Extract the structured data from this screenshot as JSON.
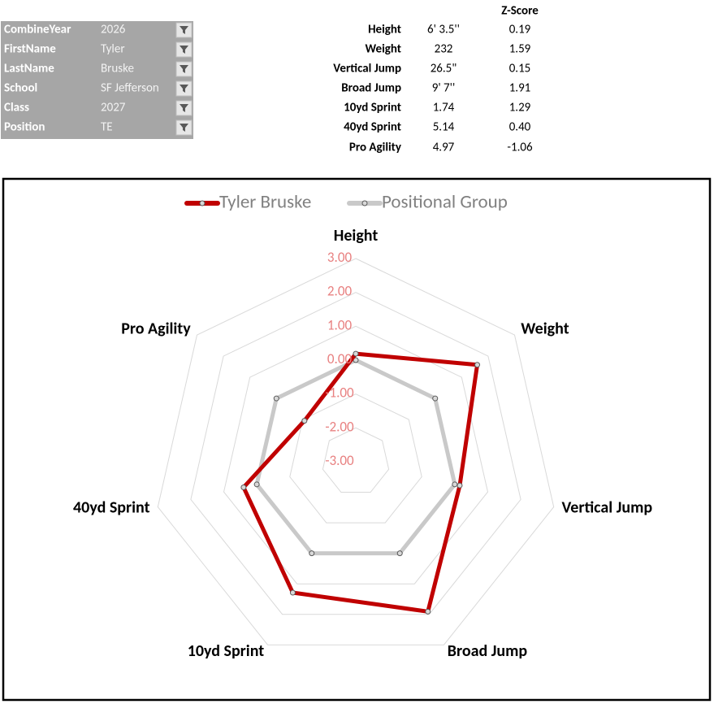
{
  "filters": [
    {
      "label": "CombineYear",
      "value": "2026"
    },
    {
      "label": "FirstName",
      "value": "Tyler"
    },
    {
      "label": "LastName",
      "value": "Bruske"
    },
    {
      "label": "School",
      "value": "SF Jefferson"
    },
    {
      "label": "Class",
      "value": "2027"
    },
    {
      "label": "Position",
      "value": "TE"
    }
  ],
  "stats": {
    "zscore_header": "Z-Score",
    "rows": [
      {
        "label": "Height",
        "value": "6' 3.5''",
        "zscore": "0.19"
      },
      {
        "label": "Weight",
        "value": "232",
        "zscore": "1.59"
      },
      {
        "label": "Vertical Jump",
        "value": "26.5\"",
        "zscore": "0.15"
      },
      {
        "label": "Broad Jump",
        "value": "9' 7''",
        "zscore": "1.91"
      },
      {
        "label": "10yd Sprint",
        "value": "1.74",
        "zscore": "1.29"
      },
      {
        "label": "40yd Sprint",
        "value": "5.14",
        "zscore": "0.40"
      },
      {
        "label": "Pro Agility",
        "value": "4.97",
        "zscore": "-1.06"
      }
    ]
  },
  "chart_data": {
    "type": "radar",
    "categories": [
      "Height",
      "Weight",
      "Vertical Jump",
      "Broad Jump",
      "10yd Sprint",
      "40yd Sprint",
      "Pro Agility"
    ],
    "series": [
      {
        "name": "Tyler Bruske",
        "color": "#c00000",
        "values": [
          0.19,
          1.59,
          0.15,
          1.91,
          1.29,
          0.4,
          -1.06
        ]
      },
      {
        "name": "Positional Group",
        "color": "#c9c9c9",
        "values": [
          0,
          0,
          0,
          0,
          0,
          0,
          0
        ]
      }
    ],
    "ylim": [
      -3,
      3
    ],
    "yticks": [
      {
        "value": 3,
        "label": "3.00"
      },
      {
        "value": 2,
        "label": "2.00"
      },
      {
        "value": 1,
        "label": "1.00"
      },
      {
        "value": 0,
        "label": "0.00"
      },
      {
        "value": -1,
        "label": "-1.00"
      },
      {
        "value": -2,
        "label": "-2.00"
      },
      {
        "value": -3,
        "label": "-3.00"
      }
    ],
    "grid": true,
    "legend": "top"
  }
}
